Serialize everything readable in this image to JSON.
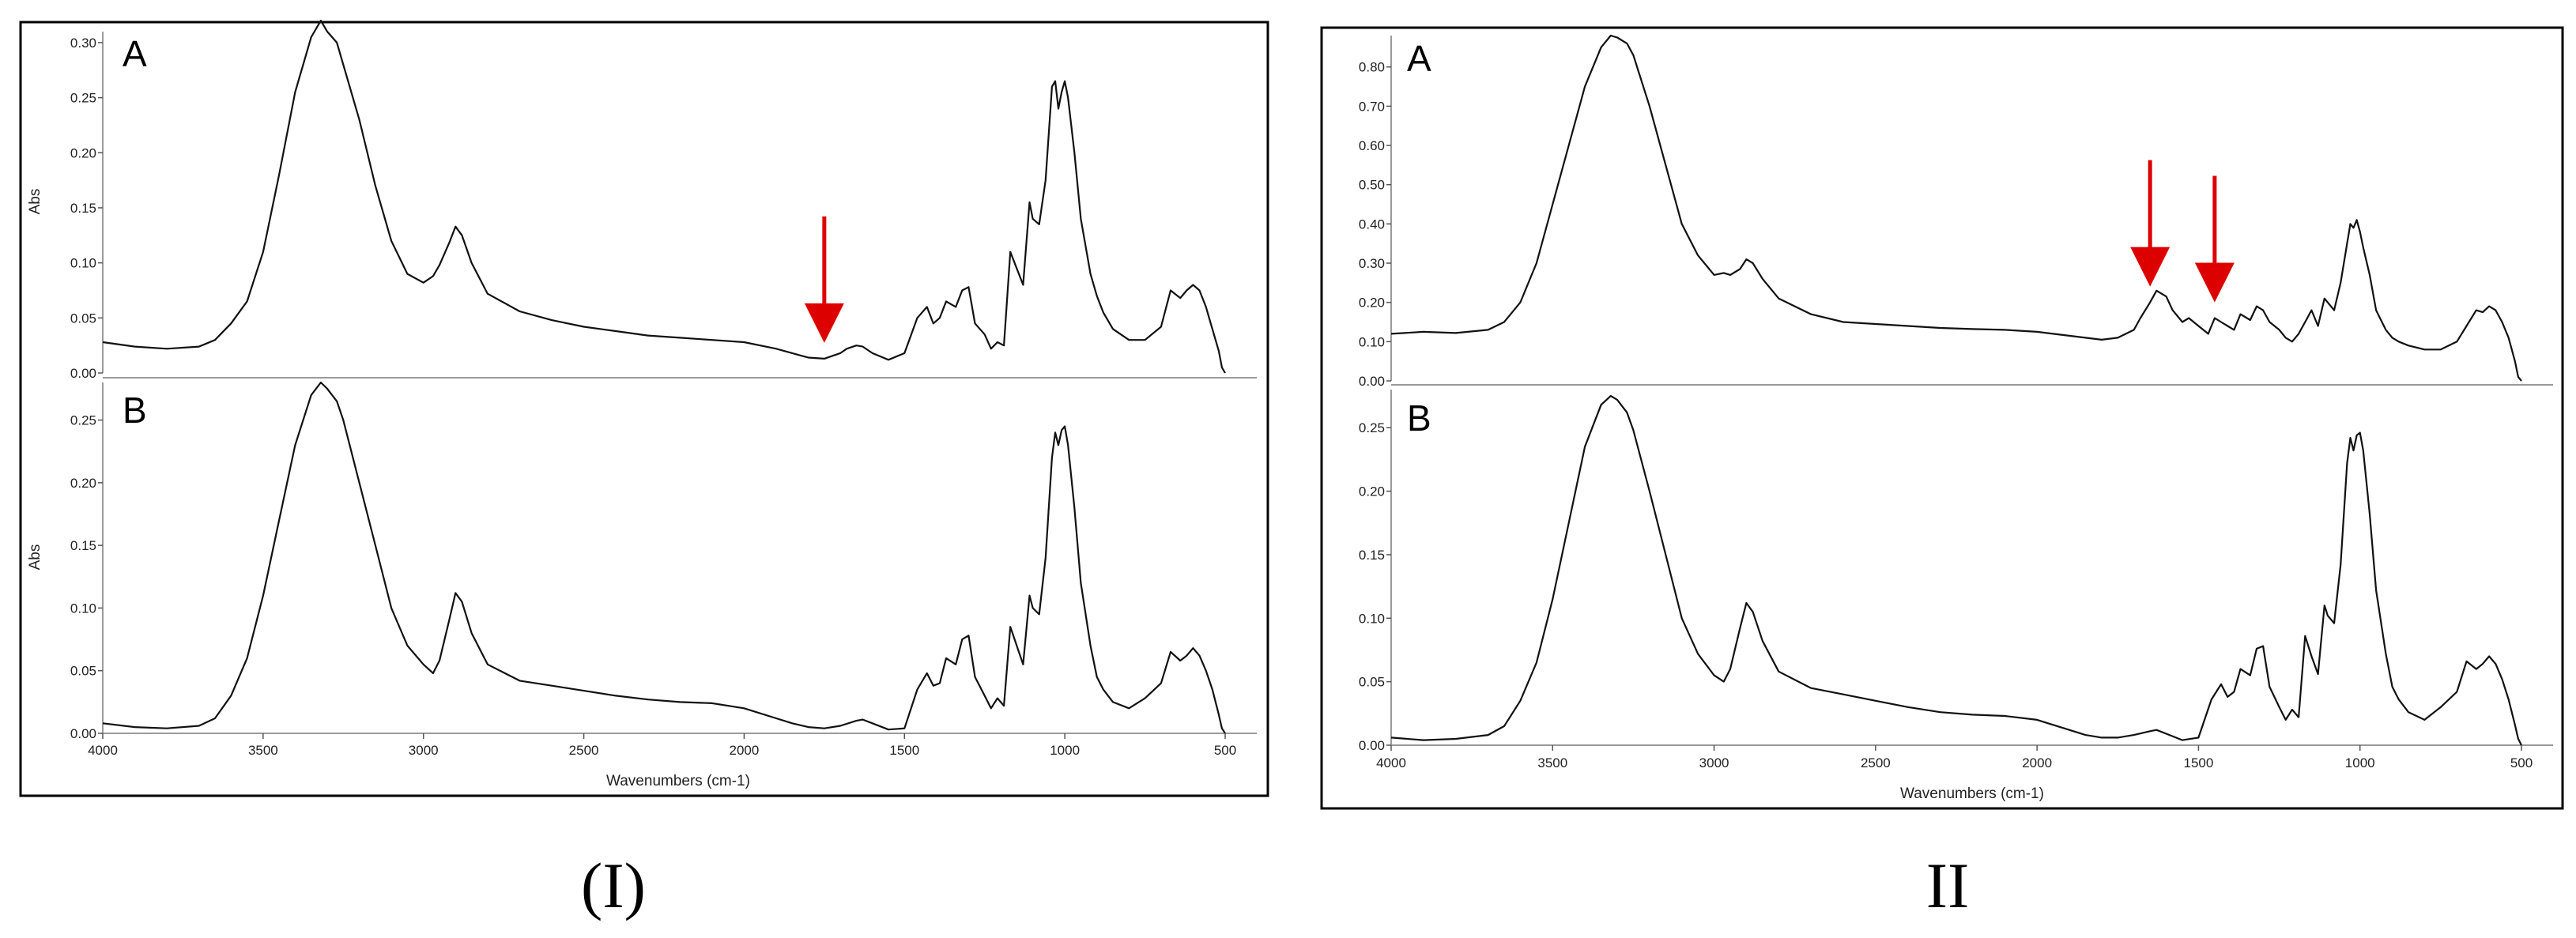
{
  "chart_data": [
    {
      "type": "line",
      "caption": "(I)",
      "xlabel": "Wavenumbers  (cm-1)",
      "xlim": [
        4000,
        500
      ],
      "x_ticks": [
        4000,
        3500,
        3000,
        2500,
        2000,
        1500,
        1000,
        500
      ],
      "annotation_color": "#dd0000",
      "panels": [
        {
          "label": "A",
          "ylabel": "Abs",
          "ylim": [
            0.0,
            0.31
          ],
          "y_ticks": [
            "0.00",
            "0.05",
            "0.10",
            "0.15",
            "0.20",
            "0.25",
            "0.30"
          ],
          "arrows_at": [
            1750
          ],
          "series": [
            {
              "x": [
                4000,
                3900,
                3800,
                3700,
                3650,
                3600,
                3550,
                3500,
                3450,
                3400,
                3350,
                3320,
                3300,
                3270,
                3250,
                3200,
                3150,
                3100,
                3050,
                3000,
                2970,
                2950,
                2920,
                2900,
                2880,
                2850,
                2800,
                2700,
                2600,
                2500,
                2400,
                2300,
                2200,
                2100,
                2000,
                1900,
                1850,
                1800,
                1750,
                1720,
                1700,
                1680,
                1650,
                1630,
                1600,
                1550,
                1500,
                1460,
                1430,
                1410,
                1390,
                1370,
                1340,
                1320,
                1300,
                1280,
                1250,
                1230,
                1210,
                1190,
                1170,
                1150,
                1130,
                1110,
                1100,
                1080,
                1060,
                1040,
                1030,
                1020,
                1010,
                1000,
                990,
                970,
                950,
                920,
                900,
                880,
                850,
                800,
                750,
                700,
                670,
                640,
                620,
                600,
                580,
                560,
                540,
                520,
                510,
                500
              ],
              "y": [
                0.028,
                0.024,
                0.022,
                0.024,
                0.03,
                0.045,
                0.065,
                0.11,
                0.18,
                0.255,
                0.305,
                0.32,
                0.31,
                0.3,
                0.28,
                0.23,
                0.17,
                0.12,
                0.09,
                0.082,
                0.088,
                0.098,
                0.118,
                0.133,
                0.125,
                0.1,
                0.072,
                0.056,
                0.048,
                0.042,
                0.038,
                0.034,
                0.032,
                0.03,
                0.028,
                0.022,
                0.018,
                0.014,
                0.013,
                0.016,
                0.018,
                0.022,
                0.025,
                0.024,
                0.018,
                0.012,
                0.018,
                0.05,
                0.06,
                0.045,
                0.05,
                0.065,
                0.06,
                0.075,
                0.078,
                0.045,
                0.035,
                0.022,
                0.028,
                0.025,
                0.11,
                0.095,
                0.08,
                0.155,
                0.14,
                0.135,
                0.175,
                0.26,
                0.265,
                0.24,
                0.255,
                0.265,
                0.25,
                0.2,
                0.14,
                0.09,
                0.07,
                0.055,
                0.04,
                0.03,
                0.03,
                0.042,
                0.075,
                0.068,
                0.075,
                0.08,
                0.075,
                0.06,
                0.04,
                0.02,
                0.005,
                0.0
              ]
            }
          ]
        },
        {
          "label": "B",
          "ylabel": "Abs",
          "ylim": [
            0.0,
            0.28
          ],
          "y_ticks": [
            "0.00",
            "0.05",
            "0.10",
            "0.15",
            "0.20",
            "0.25"
          ],
          "arrows_at": [],
          "series": [
            {
              "x": [
                4000,
                3900,
                3800,
                3700,
                3650,
                3600,
                3550,
                3500,
                3450,
                3400,
                3350,
                3320,
                3300,
                3270,
                3250,
                3200,
                3150,
                3100,
                3050,
                3000,
                2970,
                2950,
                2920,
                2900,
                2880,
                2850,
                2800,
                2700,
                2600,
                2500,
                2400,
                2300,
                2200,
                2100,
                2000,
                1900,
                1850,
                1800,
                1750,
                1700,
                1650,
                1630,
                1600,
                1550,
                1500,
                1460,
                1430,
                1410,
                1390,
                1370,
                1340,
                1320,
                1300,
                1280,
                1250,
                1230,
                1210,
                1190,
                1170,
                1150,
                1130,
                1110,
                1100,
                1080,
                1060,
                1040,
                1030,
                1020,
                1010,
                1000,
                990,
                970,
                950,
                920,
                900,
                880,
                850,
                800,
                750,
                700,
                670,
                640,
                620,
                600,
                580,
                560,
                540,
                520,
                510,
                500
              ],
              "y": [
                0.008,
                0.005,
                0.004,
                0.006,
                0.012,
                0.03,
                0.06,
                0.11,
                0.17,
                0.23,
                0.27,
                0.28,
                0.275,
                0.265,
                0.25,
                0.2,
                0.15,
                0.1,
                0.07,
                0.055,
                0.048,
                0.058,
                0.09,
                0.112,
                0.105,
                0.08,
                0.055,
                0.042,
                0.038,
                0.034,
                0.03,
                0.027,
                0.025,
                0.024,
                0.02,
                0.012,
                0.008,
                0.005,
                0.004,
                0.006,
                0.01,
                0.011,
                0.008,
                0.003,
                0.004,
                0.035,
                0.048,
                0.038,
                0.04,
                0.06,
                0.055,
                0.075,
                0.078,
                0.045,
                0.03,
                0.02,
                0.028,
                0.022,
                0.085,
                0.07,
                0.055,
                0.11,
                0.1,
                0.095,
                0.14,
                0.22,
                0.24,
                0.23,
                0.242,
                0.245,
                0.23,
                0.18,
                0.12,
                0.07,
                0.045,
                0.035,
                0.025,
                0.02,
                0.028,
                0.04,
                0.065,
                0.058,
                0.062,
                0.068,
                0.062,
                0.05,
                0.035,
                0.015,
                0.004,
                0.0
              ]
            }
          ]
        }
      ]
    },
    {
      "type": "line",
      "caption": "II",
      "xlabel": "Wavenumbers  (cm-1)",
      "xlim": [
        4000,
        500
      ],
      "x_ticks": [
        4000,
        3500,
        3000,
        2500,
        2000,
        1500,
        1000,
        500
      ],
      "annotation_color": "#dd0000",
      "panels": [
        {
          "label": "A",
          "ylabel": "",
          "ylim": [
            0.0,
            0.88
          ],
          "y_ticks": [
            "0.00",
            "0.10",
            "0.20",
            "0.30",
            "0.40",
            "0.50",
            "0.60",
            "0.70",
            "0.80"
          ],
          "arrows_at": [
            1650,
            1450
          ],
          "series": [
            {
              "x": [
                4000,
                3900,
                3800,
                3700,
                3650,
                3600,
                3550,
                3500,
                3450,
                3400,
                3350,
                3320,
                3300,
                3270,
                3250,
                3200,
                3150,
                3100,
                3050,
                3000,
                2970,
                2950,
                2920,
                2900,
                2880,
                2850,
                2800,
                2700,
                2600,
                2500,
                2400,
                2300,
                2200,
                2100,
                2000,
                1900,
                1800,
                1750,
                1700,
                1680,
                1650,
                1630,
                1600,
                1580,
                1550,
                1530,
                1500,
                1470,
                1450,
                1430,
                1410,
                1390,
                1370,
                1340,
                1320,
                1300,
                1280,
                1250,
                1230,
                1210,
                1190,
                1170,
                1150,
                1130,
                1110,
                1100,
                1080,
                1060,
                1040,
                1030,
                1020,
                1010,
                1000,
                990,
                970,
                950,
                920,
                900,
                880,
                850,
                800,
                750,
                700,
                670,
                640,
                620,
                600,
                580,
                560,
                540,
                520,
                510,
                500
              ],
              "y": [
                0.12,
                0.125,
                0.122,
                0.13,
                0.15,
                0.2,
                0.3,
                0.45,
                0.6,
                0.75,
                0.85,
                0.88,
                0.875,
                0.86,
                0.83,
                0.7,
                0.55,
                0.4,
                0.32,
                0.27,
                0.275,
                0.27,
                0.285,
                0.31,
                0.3,
                0.26,
                0.21,
                0.17,
                0.15,
                0.145,
                0.14,
                0.135,
                0.132,
                0.13,
                0.125,
                0.115,
                0.105,
                0.11,
                0.13,
                0.16,
                0.2,
                0.23,
                0.215,
                0.18,
                0.15,
                0.16,
                0.14,
                0.12,
                0.16,
                0.15,
                0.14,
                0.13,
                0.17,
                0.155,
                0.19,
                0.18,
                0.15,
                0.13,
                0.11,
                0.1,
                0.12,
                0.15,
                0.18,
                0.14,
                0.21,
                0.2,
                0.18,
                0.25,
                0.35,
                0.4,
                0.39,
                0.41,
                0.38,
                0.34,
                0.27,
                0.18,
                0.13,
                0.11,
                0.1,
                0.09,
                0.08,
                0.08,
                0.1,
                0.14,
                0.18,
                0.175,
                0.19,
                0.18,
                0.15,
                0.11,
                0.05,
                0.01,
                0.0
              ]
            }
          ]
        },
        {
          "label": "B",
          "ylabel": "",
          "ylim": [
            0.0,
            0.28
          ],
          "y_ticks": [
            "0.00",
            "0.05",
            "0.10",
            "0.15",
            "0.20",
            "0.25"
          ],
          "arrows_at": [],
          "series": [
            {
              "x": [
                4000,
                3900,
                3800,
                3700,
                3650,
                3600,
                3550,
                3500,
                3450,
                3400,
                3350,
                3320,
                3300,
                3270,
                3250,
                3200,
                3150,
                3100,
                3050,
                3000,
                2970,
                2950,
                2920,
                2900,
                2880,
                2850,
                2800,
                2700,
                2600,
                2500,
                2400,
                2300,
                2200,
                2100,
                2000,
                1900,
                1850,
                1800,
                1750,
                1700,
                1650,
                1630,
                1600,
                1550,
                1500,
                1460,
                1430,
                1410,
                1390,
                1370,
                1340,
                1320,
                1300,
                1280,
                1250,
                1230,
                1210,
                1190,
                1170,
                1150,
                1130,
                1110,
                1100,
                1080,
                1060,
                1040,
                1030,
                1020,
                1010,
                1000,
                990,
                970,
                950,
                920,
                900,
                880,
                850,
                800,
                750,
                700,
                670,
                640,
                620,
                600,
                580,
                560,
                540,
                520,
                510,
                500
              ],
              "y": [
                0.006,
                0.004,
                0.005,
                0.008,
                0.015,
                0.035,
                0.065,
                0.115,
                0.175,
                0.235,
                0.268,
                0.275,
                0.272,
                0.262,
                0.248,
                0.2,
                0.15,
                0.1,
                0.072,
                0.055,
                0.05,
                0.06,
                0.092,
                0.112,
                0.105,
                0.082,
                0.058,
                0.045,
                0.04,
                0.035,
                0.03,
                0.026,
                0.024,
                0.023,
                0.02,
                0.012,
                0.008,
                0.006,
                0.006,
                0.008,
                0.011,
                0.012,
                0.009,
                0.004,
                0.006,
                0.036,
                0.048,
                0.038,
                0.042,
                0.06,
                0.055,
                0.076,
                0.078,
                0.046,
                0.03,
                0.02,
                0.028,
                0.022,
                0.086,
                0.07,
                0.056,
                0.11,
                0.102,
                0.096,
                0.142,
                0.222,
                0.242,
                0.232,
                0.244,
                0.246,
                0.232,
                0.182,
                0.122,
                0.072,
                0.046,
                0.036,
                0.026,
                0.02,
                0.03,
                0.042,
                0.066,
                0.06,
                0.064,
                0.07,
                0.064,
                0.052,
                0.036,
                0.016,
                0.005,
                0.0
              ]
            }
          ]
        }
      ]
    }
  ]
}
